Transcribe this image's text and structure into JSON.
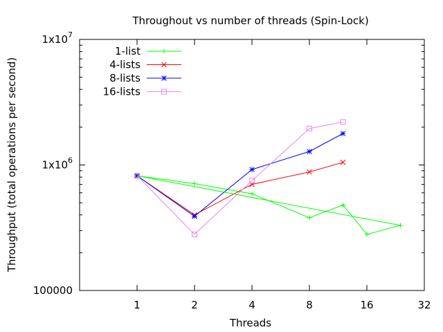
{
  "chart_data": {
    "type": "line",
    "title": "Throughout vs number of threads (Spin-Lock)",
    "xlabel": "Threads",
    "ylabel": "Throughput (total operations per second)",
    "xscale": "log2",
    "yscale": "log10",
    "xlim": [
      0.5,
      32
    ],
    "ylim": [
      100000,
      10000000
    ],
    "x_ticks": [
      {
        "value": 1,
        "label": "1"
      },
      {
        "value": 2,
        "label": "2"
      },
      {
        "value": 4,
        "label": "4"
      },
      {
        "value": 8,
        "label": "8"
      },
      {
        "value": 16,
        "label": "16"
      },
      {
        "value": 32,
        "label": "32"
      }
    ],
    "y_ticks": [
      {
        "value": 100000,
        "label": "100000",
        "sup": ""
      },
      {
        "value": 1000000,
        "label": "1x10",
        "sup": "6"
      },
      {
        "value": 10000000,
        "label": "1x10",
        "sup": "7"
      }
    ],
    "legend_position": "top-left",
    "grid": false,
    "series": [
      {
        "name": "1-list",
        "color": "#00ff00",
        "marker": "plus",
        "x": [
          1,
          2,
          4,
          8,
          12,
          16,
          24
        ],
        "y": [
          820000,
          710000,
          590000,
          380000,
          480000,
          280000,
          330000
        ]
      },
      {
        "name": "4-lists",
        "color": "#ff0000",
        "marker": "cross",
        "x": [
          1,
          2,
          4,
          8,
          12
        ],
        "y": [
          820000,
          400000,
          700000,
          880000,
          1050000
        ]
      },
      {
        "name": "8-lists",
        "color": "#0000ff",
        "marker": "star",
        "x": [
          1,
          2,
          4,
          8,
          12
        ],
        "y": [
          820000,
          390000,
          920000,
          1280000,
          1780000
        ]
      },
      {
        "name": "16-lists",
        "color": "#ee82ee",
        "marker": "square",
        "x": [
          1,
          2,
          4,
          8,
          12
        ],
        "y": [
          820000,
          280000,
          750000,
          1950000,
          2200000
        ]
      },
      {
        "name": "",
        "color": "#00ff00",
        "marker": "none",
        "x": [
          1,
          24
        ],
        "y": [
          820000,
          330000
        ]
      }
    ]
  }
}
